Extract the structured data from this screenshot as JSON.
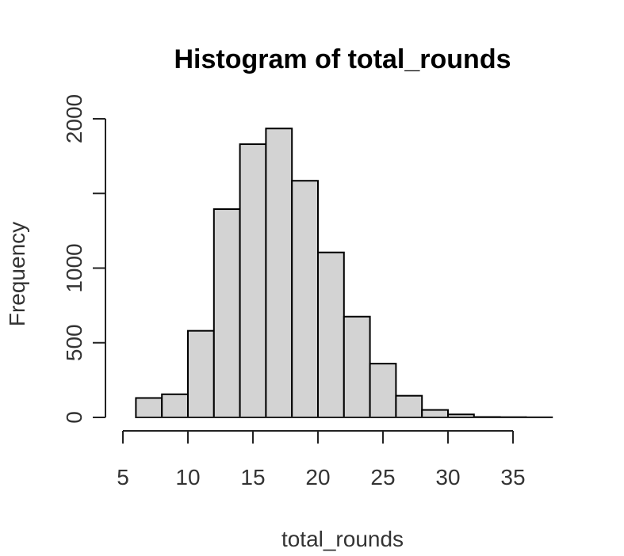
{
  "chart_data": {
    "type": "bar",
    "title": "Histogram of total_rounds",
    "xlabel": "total_rounds",
    "ylabel": "Frequency",
    "bin_edges": [
      6,
      8,
      10,
      12,
      14,
      16,
      18,
      20,
      22,
      24,
      26,
      28,
      30,
      32,
      34,
      36,
      38
    ],
    "values": [
      130,
      155,
      580,
      1395,
      1830,
      1935,
      1585,
      1105,
      675,
      360,
      145,
      50,
      20,
      3,
      2,
      1
    ],
    "xlim": [
      5,
      38
    ],
    "ylim": [
      0,
      2000
    ],
    "x_ticks": [
      5,
      10,
      15,
      20,
      25,
      30,
      35
    ],
    "x_tick_labels": [
      "5",
      "10",
      "15",
      "20",
      "25",
      "30",
      "35"
    ],
    "y_ticks": [
      0,
      500,
      1000,
      1500,
      2000
    ],
    "y_tick_labels": [
      "0",
      "500",
      "1000",
      "",
      "2000"
    ],
    "bar_fill": "#d3d3d3",
    "bar_stroke": "#000000",
    "grid": false,
    "legend": "none"
  }
}
